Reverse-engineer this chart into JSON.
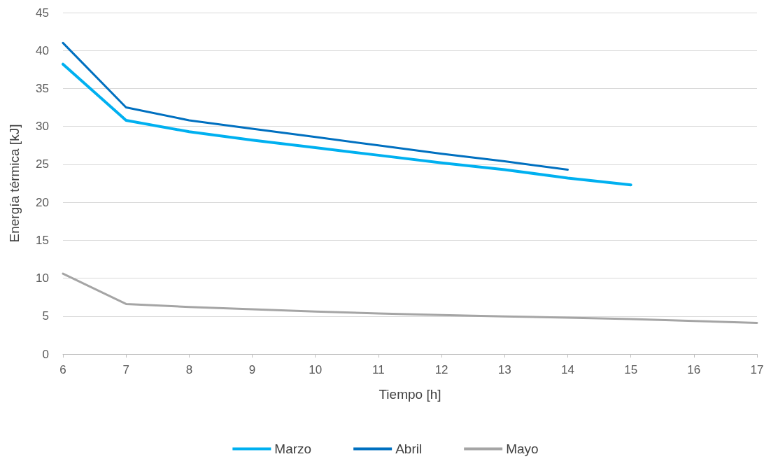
{
  "chart_data": {
    "type": "line",
    "xlabel": "Tiempo [h]",
    "ylabel": "Energía térmica [kJ]",
    "x": [
      6,
      7,
      8,
      9,
      10,
      11,
      12,
      13,
      14,
      15,
      16,
      17
    ],
    "series": [
      {
        "name": "Marzo",
        "color": "#00b0f0",
        "values": [
          38.2,
          30.8,
          29.3,
          28.2,
          27.2,
          26.2,
          25.2,
          24.3,
          23.2,
          22.3,
          null,
          null
        ]
      },
      {
        "name": "Abril",
        "color": "#0070c0",
        "values": [
          41.0,
          32.5,
          30.8,
          29.7,
          28.6,
          27.5,
          26.4,
          25.4,
          24.3,
          null,
          null,
          null
        ]
      },
      {
        "name": "Mayo",
        "color": "#a5a5a5",
        "values": [
          10.6,
          6.6,
          6.2,
          5.9,
          5.6,
          5.35,
          5.15,
          4.95,
          4.8,
          4.6,
          4.35,
          4.1
        ]
      }
    ],
    "xlim": [
      6,
      17
    ],
    "xticks": [
      6,
      7,
      8,
      9,
      10,
      11,
      12,
      13,
      14,
      15,
      16,
      17
    ],
    "ylim": [
      0,
      45
    ],
    "yticks": [
      0,
      5,
      10,
      15,
      20,
      25,
      30,
      35,
      40,
      45
    ],
    "grid": "y",
    "legend": "bottom",
    "marker": "none",
    "line_style": "solid"
  }
}
